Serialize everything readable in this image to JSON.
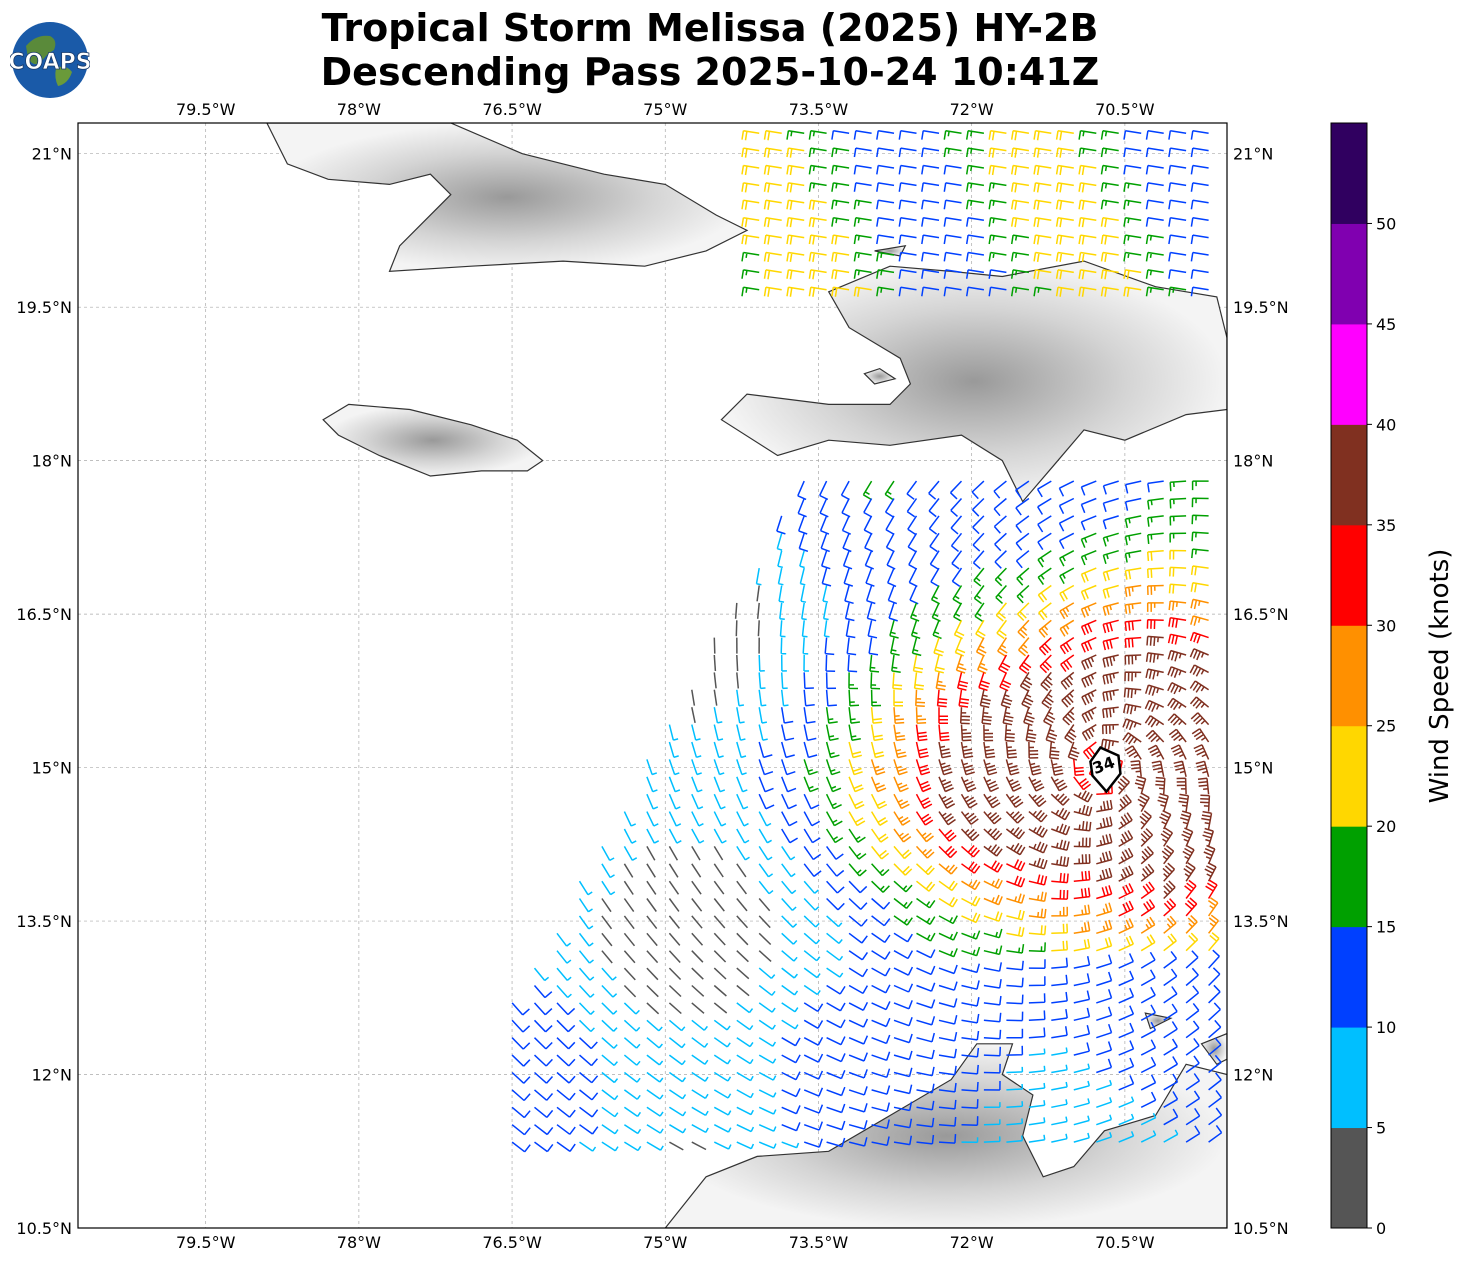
{
  "title": {
    "line1": "Tropical Storm Melissa (2025) HY-2B",
    "line2": "Descending Pass 2025-10-24 10:41Z"
  },
  "logo": {
    "text": "COAPS",
    "icon": "globe-logo-icon"
  },
  "map": {
    "lon_range": [
      -80.75,
      -69.5
    ],
    "lat_range": [
      10.5,
      21.3
    ],
    "lon_ticks": [
      {
        "value": -79.5,
        "label": "79.5°W"
      },
      {
        "value": -78.0,
        "label": "78°W"
      },
      {
        "value": -76.5,
        "label": "76.5°W"
      },
      {
        "value": -75.0,
        "label": "75°W"
      },
      {
        "value": -73.5,
        "label": "73.5°W"
      },
      {
        "value": -72.0,
        "label": "72°W"
      },
      {
        "value": -70.5,
        "label": "70.5°W"
      }
    ],
    "lat_ticks": [
      {
        "value": 21.0,
        "label": "21°N"
      },
      {
        "value": 19.5,
        "label": "19.5°N"
      },
      {
        "value": 18.0,
        "label": "18°N"
      },
      {
        "value": 16.5,
        "label": "16.5°N"
      },
      {
        "value": 15.0,
        "label": "15°N"
      },
      {
        "value": 13.5,
        "label": "13.5°N"
      },
      {
        "value": 12.0,
        "label": "12°N"
      },
      {
        "value": 10.5,
        "label": "10.5°N"
      }
    ],
    "storm_center": {
      "lon": -70.7,
      "lat": 15.0,
      "label": "34"
    },
    "landmasses": [
      {
        "name": "cuba",
        "poly": [
          [
            -78.9,
            21.3
          ],
          [
            -78.7,
            20.9
          ],
          [
            -78.3,
            20.75
          ],
          [
            -77.7,
            20.7
          ],
          [
            -77.3,
            20.8
          ],
          [
            -77.1,
            20.6
          ],
          [
            -77.6,
            20.1
          ],
          [
            -77.7,
            19.85
          ],
          [
            -76.9,
            19.9
          ],
          [
            -76.0,
            19.95
          ],
          [
            -75.2,
            19.9
          ],
          [
            -74.6,
            20.05
          ],
          [
            -74.2,
            20.25
          ],
          [
            -74.5,
            20.4
          ],
          [
            -75.0,
            20.7
          ],
          [
            -75.6,
            20.8
          ],
          [
            -76.4,
            21.0
          ],
          [
            -77.1,
            21.3
          ]
        ]
      },
      {
        "name": "jamaica",
        "poly": [
          [
            -78.35,
            18.4
          ],
          [
            -78.2,
            18.25
          ],
          [
            -77.8,
            18.05
          ],
          [
            -77.3,
            17.85
          ],
          [
            -76.8,
            17.9
          ],
          [
            -76.35,
            17.9
          ],
          [
            -76.2,
            18.0
          ],
          [
            -76.45,
            18.2
          ],
          [
            -76.9,
            18.35
          ],
          [
            -77.5,
            18.5
          ],
          [
            -78.1,
            18.55
          ]
        ]
      },
      {
        "name": "hispaniola",
        "poly": [
          [
            -74.45,
            18.4
          ],
          [
            -74.2,
            18.65
          ],
          [
            -73.4,
            18.55
          ],
          [
            -72.8,
            18.55
          ],
          [
            -72.6,
            18.75
          ],
          [
            -72.7,
            19.0
          ],
          [
            -73.2,
            19.3
          ],
          [
            -73.4,
            19.65
          ],
          [
            -72.8,
            19.9
          ],
          [
            -72.2,
            19.85
          ],
          [
            -71.7,
            19.8
          ],
          [
            -70.9,
            19.95
          ],
          [
            -70.2,
            19.7
          ],
          [
            -69.6,
            19.6
          ],
          [
            -69.5,
            19.2
          ],
          [
            -69.5,
            18.5
          ],
          [
            -69.9,
            18.45
          ],
          [
            -70.5,
            18.2
          ],
          [
            -70.9,
            18.3
          ],
          [
            -71.2,
            17.95
          ],
          [
            -71.5,
            17.6
          ],
          [
            -71.7,
            18.0
          ],
          [
            -72.1,
            18.25
          ],
          [
            -72.8,
            18.15
          ],
          [
            -73.4,
            18.2
          ],
          [
            -73.9,
            18.05
          ]
        ]
      },
      {
        "name": "gonave",
        "poly": [
          [
            -73.05,
            18.85
          ],
          [
            -72.9,
            18.9
          ],
          [
            -72.75,
            18.8
          ],
          [
            -72.95,
            18.75
          ]
        ]
      },
      {
        "name": "tortuga",
        "poly": [
          [
            -72.95,
            20.05
          ],
          [
            -72.65,
            20.1
          ],
          [
            -72.7,
            20.0
          ]
        ]
      },
      {
        "name": "venezuela",
        "poly": [
          [
            -75.0,
            10.5
          ],
          [
            -74.6,
            11.0
          ],
          [
            -74.1,
            11.2
          ],
          [
            -73.4,
            11.25
          ],
          [
            -72.8,
            11.6
          ],
          [
            -72.2,
            11.95
          ],
          [
            -71.95,
            12.3
          ],
          [
            -71.6,
            12.3
          ],
          [
            -71.7,
            12.0
          ],
          [
            -71.4,
            11.8
          ],
          [
            -71.5,
            11.4
          ],
          [
            -71.3,
            11.0
          ],
          [
            -71.0,
            11.1
          ],
          [
            -70.7,
            11.45
          ],
          [
            -70.2,
            11.6
          ],
          [
            -69.9,
            12.1
          ],
          [
            -69.5,
            12.0
          ],
          [
            -69.5,
            10.5
          ]
        ]
      },
      {
        "name": "curacao",
        "poly": [
          [
            -69.5,
            12.4
          ],
          [
            -69.75,
            12.3
          ],
          [
            -69.6,
            12.1
          ],
          [
            -69.5,
            12.15
          ]
        ]
      },
      {
        "name": "aruba",
        "poly": [
          [
            -70.3,
            12.6
          ],
          [
            -70.05,
            12.55
          ],
          [
            -70.25,
            12.45
          ]
        ]
      }
    ]
  },
  "wind_data": {
    "units": "knots",
    "palette": [
      "#555555",
      "#00bfff",
      "#0040ff",
      "#00a000",
      "#ffd700",
      "#ff9000",
      "#ff0000",
      "#803020",
      "#ff00ff",
      "#8000b0",
      "#300060"
    ]
  },
  "colorbar": {
    "label": "Wind Speed (knots)",
    "ticks": [
      "0",
      "5",
      "10",
      "15",
      "20",
      "25",
      "30",
      "35",
      "40",
      "45",
      "50"
    ],
    "colors": [
      "#555555",
      "#00bfff",
      "#0040ff",
      "#00a000",
      "#ffd700",
      "#ff9000",
      "#ff0000",
      "#803020",
      "#ff00ff",
      "#8000b0",
      "#300060"
    ]
  }
}
